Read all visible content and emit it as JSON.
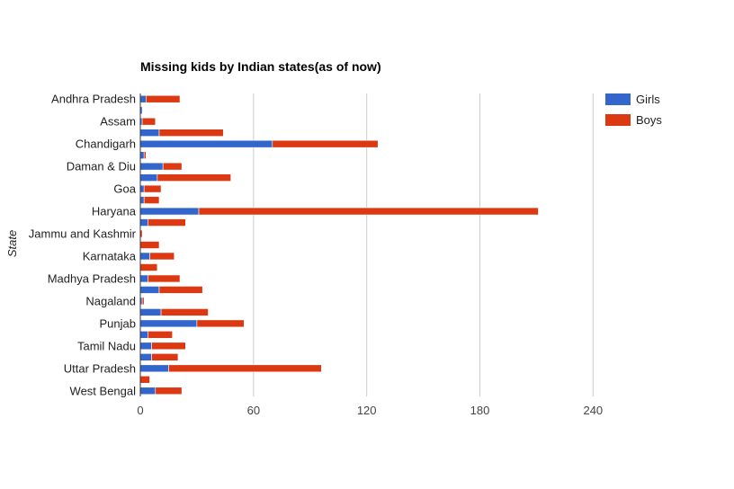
{
  "chart_data": {
    "type": "bar",
    "orientation": "horizontal",
    "stacked": true,
    "title": "Missing kids by Indian states(as of now)",
    "xlabel": "",
    "ylabel": "State",
    "xlim": [
      0,
      288
    ],
    "xticks": [
      0,
      60,
      120,
      180,
      240
    ],
    "grid": true,
    "legend_position": "right",
    "categories": [
      "Andhra Pradesh",
      "",
      "Assam",
      "",
      "Chandigarh",
      "",
      "Daman & Diu",
      "",
      "Goa",
      "",
      "Haryana",
      "",
      "Jammu and Kashmir",
      "",
      "Karnataka",
      "",
      "Madhya Pradesh",
      "",
      "Nagaland",
      "",
      "Punjab",
      "",
      "Tamil Nadu",
      "",
      "Uttar Pradesh",
      "",
      "West Bengal"
    ],
    "series": [
      {
        "name": "Girls",
        "color": "#3366cc",
        "values": [
          3,
          1,
          1,
          10,
          70,
          2,
          12,
          9,
          2,
          2,
          31,
          4,
          0,
          0,
          5,
          0,
          4,
          10,
          1,
          11,
          30,
          4,
          6,
          6,
          15,
          0,
          8
        ]
      },
      {
        "name": "Boys",
        "color": "#dc3912",
        "values": [
          18,
          0,
          7,
          34,
          56,
          1,
          10,
          39,
          9,
          8,
          180,
          20,
          1,
          10,
          13,
          9,
          17,
          23,
          1,
          25,
          25,
          13,
          18,
          14,
          81,
          5,
          14
        ]
      }
    ]
  }
}
